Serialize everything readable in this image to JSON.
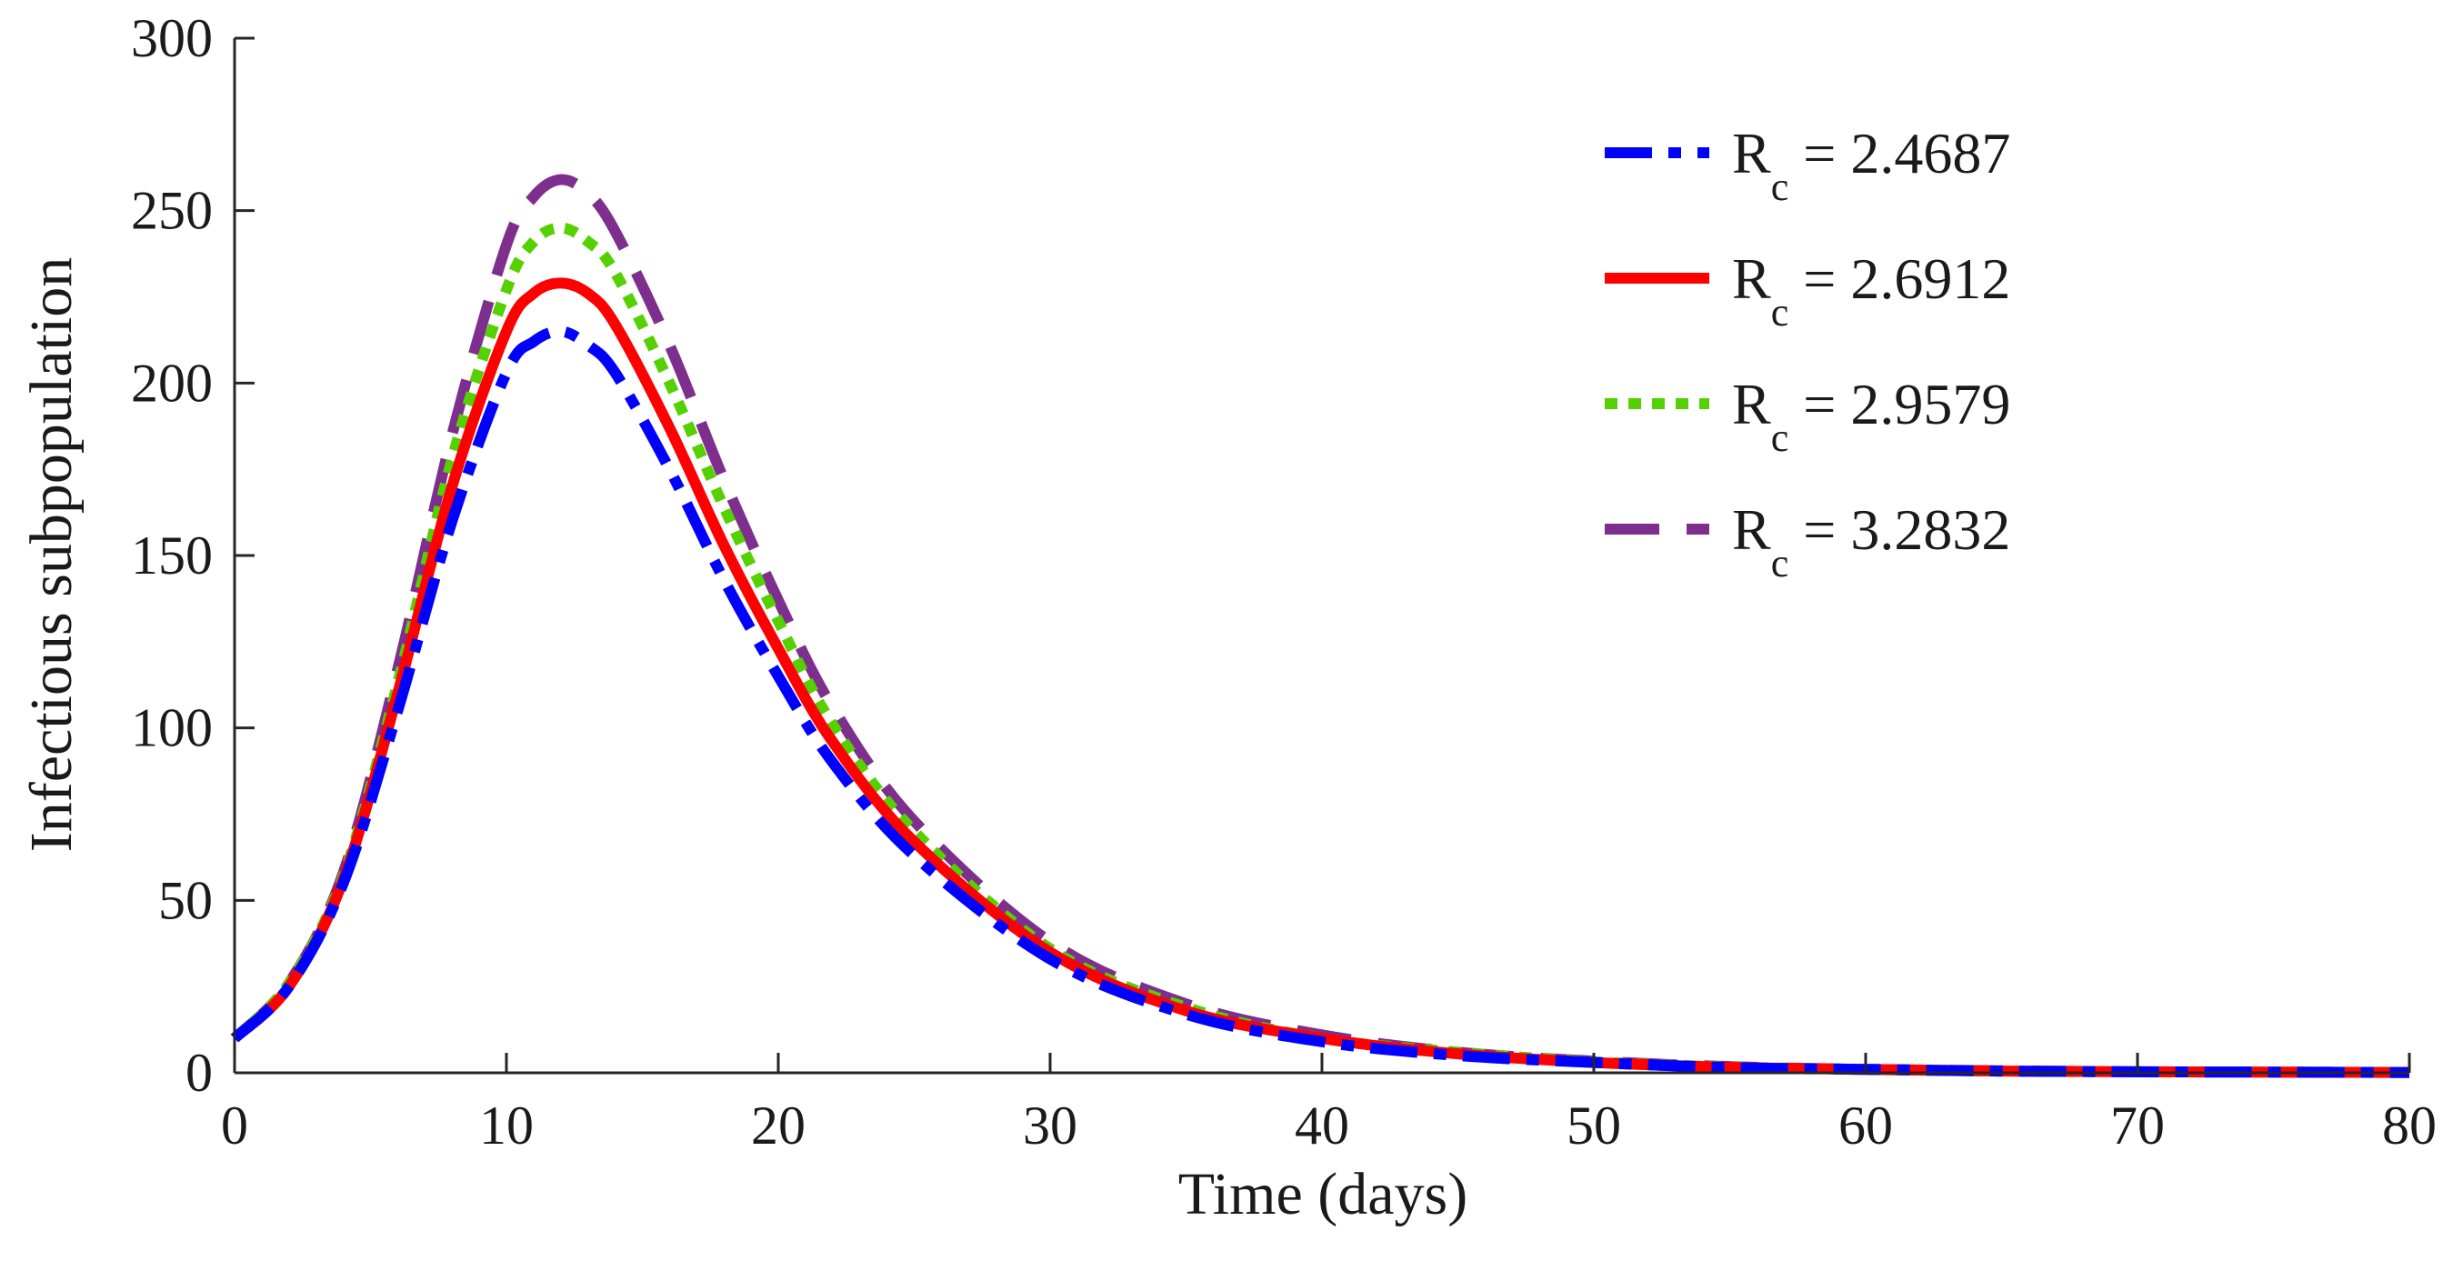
{
  "chart_data": {
    "type": "line",
    "title": "",
    "xlabel": "Time (days)",
    "ylabel": "Infectious subpopulation",
    "xlim": [
      0,
      80
    ],
    "ylim": [
      0,
      300
    ],
    "xticks": [
      0,
      10,
      20,
      30,
      40,
      50,
      60,
      70,
      80
    ],
    "yticks": [
      0,
      50,
      100,
      150,
      200,
      250,
      300
    ],
    "grid": false,
    "legend_position": "top-right",
    "x": [
      0,
      2,
      4,
      6,
      8,
      10,
      11,
      12,
      13,
      14,
      16,
      18,
      20,
      22,
      25,
      30,
      35,
      40,
      45,
      50,
      55,
      60,
      65,
      70,
      75,
      80
    ],
    "series": [
      {
        "name": "R = 2.4687",
        "legend_main": "R",
        "legend_sub": "c",
        "legend_value": " = 2.4687",
        "color": "#0000ff",
        "style": "dashdot",
        "values": [
          10,
          25,
          55,
          105,
          160,
          203,
          212,
          215,
          211,
          203,
          175,
          143,
          115,
          90,
          63,
          33,
          17,
          9,
          5,
          3,
          1.5,
          1,
          0.5,
          0.3,
          0.2,
          0.1
        ]
      },
      {
        "name": "R = 2.6912",
        "legend_main": "R",
        "legend_sub": "c",
        "legend_value": " = 2.6912",
        "color": "#ff0000",
        "style": "solid",
        "values": [
          10,
          25,
          56,
          110,
          170,
          215,
          226,
          229,
          226,
          217,
          187,
          153,
          123,
          96,
          67,
          35,
          18,
          10,
          5.5,
          3,
          1.6,
          1,
          0.5,
          0.3,
          0.2,
          0.1
        ]
      },
      {
        "name": "R = 2.9579",
        "legend_main": "R",
        "legend_sub": "c",
        "legend_value": " = 2.9579",
        "color": "#55d000",
        "style": "dotted",
        "values": [
          10,
          26,
          57,
          113,
          178,
          227,
          241,
          245,
          241,
          232,
          200,
          164,
          131,
          101,
          70,
          36,
          19,
          10,
          6,
          3.2,
          1.7,
          1,
          0.5,
          0.3,
          0.2,
          0.1
        ]
      },
      {
        "name": "R = 3.2832",
        "legend_main": "R",
        "legend_sub": "c",
        "legend_value": " = 3.2832",
        "color": "#7e2f8e",
        "style": "longdash",
        "values": [
          10,
          26,
          58,
          117,
          185,
          240,
          254,
          259,
          255,
          244,
          211,
          172,
          137,
          106,
          73,
          38,
          20,
          11,
          6,
          3.4,
          1.8,
          1,
          0.6,
          0.3,
          0.2,
          0.1
        ]
      }
    ]
  }
}
